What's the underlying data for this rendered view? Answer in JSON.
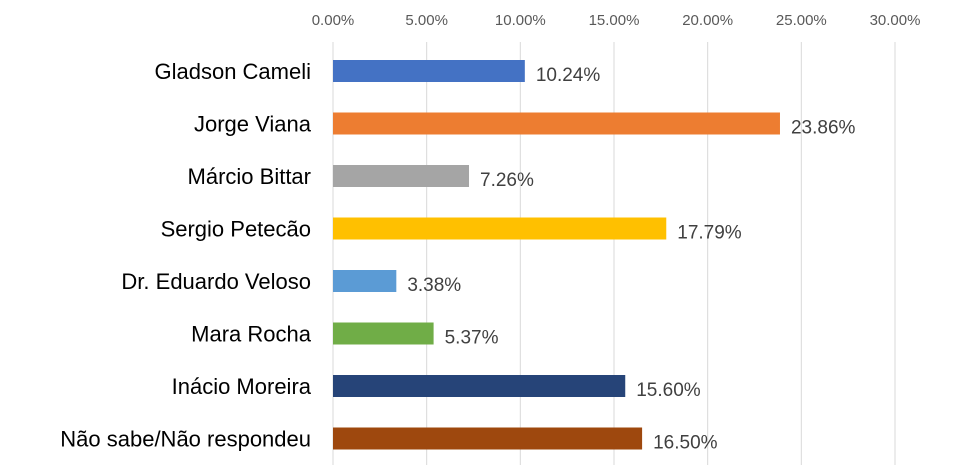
{
  "chart_data": {
    "type": "bar",
    "orientation": "horizontal",
    "title": "",
    "xlabel": "",
    "ylabel": "",
    "xlim": [
      0,
      30
    ],
    "x_ticks": [
      "0.00%",
      "5.00%",
      "10.00%",
      "15.00%",
      "20.00%",
      "25.00%",
      "30.00%"
    ],
    "x_axis_position": "top",
    "grid": true,
    "legend": "none",
    "categories": [
      "Gladson Cameli",
      "Jorge Viana",
      "Márcio Bittar",
      "Sergio Petecão",
      "Dr. Eduardo Veloso",
      "Mara Rocha",
      "Inácio Moreira",
      "Não sabe/Não respondeu"
    ],
    "values": [
      10.24,
      23.86,
      7.26,
      17.79,
      3.38,
      5.37,
      15.6,
      16.5
    ],
    "data_labels": [
      "10.24%",
      "23.86%",
      "7.26%",
      "17.79%",
      "3.38%",
      "5.37%",
      "15.60%",
      "16.50%"
    ],
    "colors": [
      "#4472c4",
      "#ed7d31",
      "#a5a5a5",
      "#ffc000",
      "#5b9bd5",
      "#70ad47",
      "#264478",
      "#9e480e"
    ]
  }
}
